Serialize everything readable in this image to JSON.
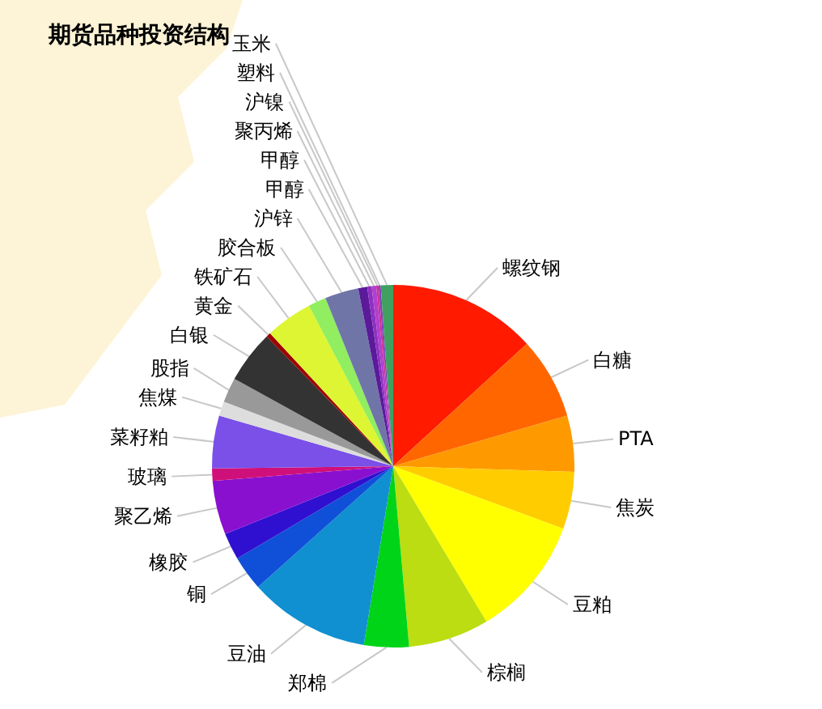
{
  "chart_data": {
    "type": "pie",
    "title": "期货品种投资结构",
    "categories": [
      "螺纹钢",
      "白糖",
      "PTA",
      "焦炭",
      "豆粕",
      "棕榈",
      "郑棉",
      "豆油",
      "铜",
      "橡胶",
      "聚乙烯",
      "玻璃",
      "菜籽粕",
      "焦煤",
      "股指",
      "白银",
      "黄金",
      "铁矿石",
      "胶合板",
      "沪锌",
      "甲醇",
      "甲醇",
      "聚丙烯",
      "沪镍",
      "塑料",
      "玉米"
    ],
    "values": [
      13.2,
      7.3,
      5.0,
      5.1,
      10.8,
      7.2,
      4.0,
      10.8,
      3.1,
      2.4,
      4.8,
      1.1,
      4.7,
      1.3,
      2.2,
      4.7,
      0.4,
      4.2,
      1.6,
      3.0,
      0.8,
      0.4,
      0.4,
      0.2,
      0.2,
      1.1
    ],
    "colors": [
      "#ff1a00",
      "#ff6600",
      "#ff9900",
      "#ffcc00",
      "#ffff00",
      "#bbdd11",
      "#00d418",
      "#1090d0",
      "#1050d8",
      "#3010d0",
      "#8a10d0",
      "#d0107a",
      "#7a50e8",
      "#dddddd",
      "#999999",
      "#333333",
      "#a00000",
      "#ddf533",
      "#90ee60",
      "#7075a8",
      "#5a1a9a",
      "#9030c0",
      "#b040d0",
      "#d03090",
      "#8040c0",
      "#40a060"
    ]
  }
}
